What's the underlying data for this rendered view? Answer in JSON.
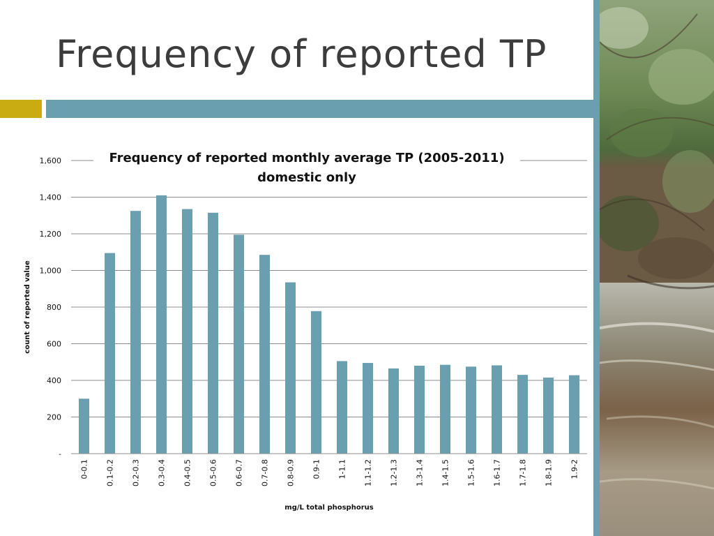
{
  "slide": {
    "title": "Frequency of reported TP"
  },
  "colors": {
    "title_text": "#3c3c3c",
    "accent_gold": "#c9ac12",
    "accent_teal": "#6a9fb0",
    "bar_fill": "#6a9fb0",
    "gridline": "#8c8c8c"
  },
  "photo": {
    "subject": "stream-with-trees"
  },
  "chart_data": {
    "type": "bar",
    "title": "Frequency of reported monthly average TP (2005-2011)",
    "subtitle": "domestic only",
    "xlabel": "mg/L total phosphorus",
    "ylabel": "count of reported value",
    "categories": [
      "0-0.1",
      "0.1-0.2",
      "0.2-0.3",
      "0.3-0.4",
      "0.4-0.5",
      "0.5-0.6",
      "0.6-0.7",
      "0.7-0.8",
      "0.8-0.9",
      "0.9-1",
      "1-1.1",
      "1.1-1.2",
      "1.2-1.3",
      "1.3-1.4",
      "1.4-1.5",
      "1.5-1.6",
      "1.6-1.7",
      "1.7-1.8",
      "1.8-1.9",
      "1.9-2"
    ],
    "values": [
      300,
      1095,
      1325,
      1410,
      1335,
      1315,
      1195,
      1085,
      935,
      778,
      505,
      495,
      465,
      480,
      485,
      475,
      482,
      430,
      415,
      428
    ],
    "ylim": [
      0,
      1600
    ],
    "yticks": [
      0,
      200,
      400,
      600,
      800,
      1000,
      1200,
      1400,
      1600
    ],
    "ytick_labels": [
      "-",
      "200",
      "400",
      "600",
      "800",
      "1,000",
      "1,200",
      "1,400",
      "1,600"
    ],
    "grid": true,
    "legend": "none"
  }
}
